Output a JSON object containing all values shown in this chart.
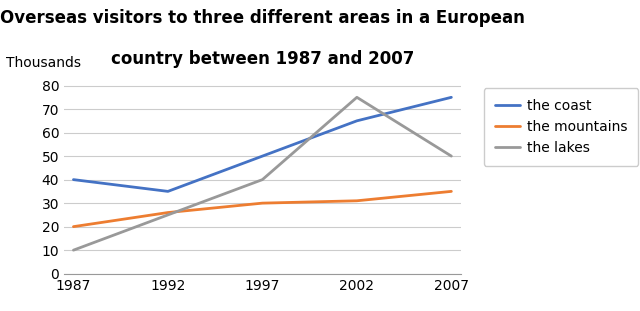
{
  "title_line1": "Overseas visitors to three different areas in a European",
  "title_line2": "country between 1987 and 2007",
  "ylabel": "Thousands",
  "years": [
    1987,
    1992,
    1997,
    2002,
    2007
  ],
  "series": {
    "the coast": {
      "values": [
        40,
        35,
        50,
        65,
        75
      ],
      "color": "#4472C4",
      "linewidth": 2.0
    },
    "the mountains": {
      "values": [
        20,
        26,
        30,
        31,
        35
      ],
      "color": "#ED7D31",
      "linewidth": 2.0
    },
    "the lakes": {
      "values": [
        10,
        25,
        40,
        75,
        50
      ],
      "color": "#999999",
      "linewidth": 2.0
    }
  },
  "ylim": [
    0,
    82
  ],
  "yticks": [
    0,
    10,
    20,
    30,
    40,
    50,
    60,
    70,
    80
  ],
  "xticks": [
    1987,
    1992,
    1997,
    2002,
    2007
  ],
  "background_color": "#ffffff",
  "grid_color": "#cccccc",
  "title_fontsize": 12,
  "tick_fontsize": 10,
  "ylabel_fontsize": 10,
  "legend_fontsize": 10
}
